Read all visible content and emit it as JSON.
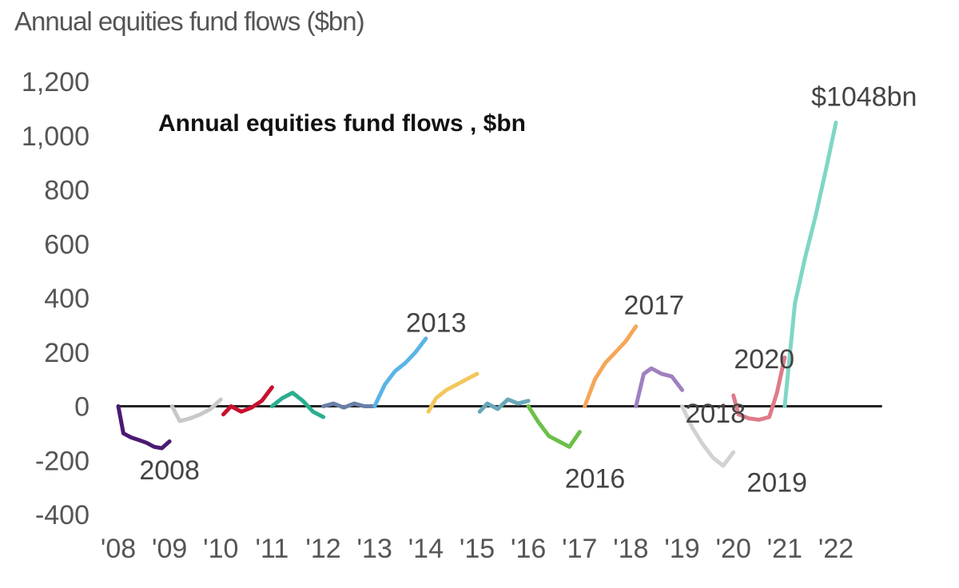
{
  "header": {
    "title": "Annual equities fund flows ($bn)"
  },
  "chart_data": {
    "type": "line",
    "title": "Annual equities fund flows , $bn",
    "ylim": [
      -400,
      1200
    ],
    "yticks": [
      1200,
      1000,
      800,
      600,
      400,
      200,
      0,
      -200,
      -400
    ],
    "ytick_labels": [
      "1,200",
      "1,000",
      "800",
      "600",
      "400",
      "200",
      "0",
      "-200",
      "-400"
    ],
    "xticks": [
      2008,
      2009,
      2010,
      2011,
      2012,
      2013,
      2014,
      2015,
      2016,
      2017,
      2018,
      2019,
      2020,
      2021,
      2022
    ],
    "xtick_labels": [
      "'08",
      "'09",
      "'10",
      "'11",
      "'12",
      "'13",
      "'14",
      "'15",
      "'16",
      "'17",
      "'18",
      "'19",
      "'20",
      "'21",
      "'22"
    ],
    "series": [
      {
        "name": "2008",
        "color": "#4b1a73",
        "x": [
          2008.0,
          2008.1,
          2008.25,
          2008.4,
          2008.55,
          2008.7,
          2008.85,
          2009.0
        ],
        "y": [
          0,
          -100,
          -115,
          -125,
          -135,
          -150,
          -155,
          -130
        ]
      },
      {
        "name": "",
        "color": "#c8c8c8",
        "x": [
          2009.05,
          2009.2,
          2009.4,
          2009.6,
          2009.8,
          2010.0
        ],
        "y": [
          0,
          -55,
          -45,
          -30,
          -10,
          25
        ]
      },
      {
        "name": "",
        "color": "#c8102e",
        "x": [
          2010.05,
          2010.2,
          2010.4,
          2010.6,
          2010.8,
          2011.0
        ],
        "y": [
          -30,
          0,
          -20,
          -5,
          20,
          70
        ]
      },
      {
        "name": "",
        "color": "#2aae8f",
        "x": [
          2011.0,
          2011.2,
          2011.4,
          2011.6,
          2011.8,
          2012.0
        ],
        "y": [
          0,
          30,
          50,
          20,
          -20,
          -40
        ]
      },
      {
        "name": "",
        "color": "#6b7fa8",
        "x": [
          2012.0,
          2012.2,
          2012.4,
          2012.6,
          2012.8,
          2013.0
        ],
        "y": [
          0,
          10,
          -5,
          10,
          0,
          0
        ]
      },
      {
        "name": "2013",
        "color": "#5ab4e6",
        "x": [
          2013.0,
          2013.2,
          2013.4,
          2013.6,
          2013.8,
          2014.0
        ],
        "y": [
          0,
          80,
          130,
          160,
          200,
          250
        ]
      },
      {
        "name": "",
        "color": "#f2c75c",
        "x": [
          2014.05,
          2014.2,
          2014.4,
          2014.6,
          2014.8,
          2015.0
        ],
        "y": [
          -20,
          30,
          60,
          80,
          100,
          120
        ]
      },
      {
        "name": "",
        "color": "#6aa8b8",
        "x": [
          2015.05,
          2015.2,
          2015.4,
          2015.6,
          2015.8,
          2016.0
        ],
        "y": [
          -20,
          10,
          -10,
          25,
          10,
          20
        ]
      },
      {
        "name": "2016",
        "color": "#6cc04a",
        "x": [
          2016.0,
          2016.2,
          2016.4,
          2016.6,
          2016.8,
          2017.0
        ],
        "y": [
          0,
          -60,
          -110,
          -130,
          -150,
          -95
        ]
      },
      {
        "name": "2017",
        "color": "#f5a65b",
        "x": [
          2017.1,
          2017.3,
          2017.5,
          2017.7,
          2017.9,
          2018.1
        ],
        "y": [
          0,
          100,
          160,
          200,
          240,
          295
        ]
      },
      {
        "name": "",
        "color": "#a080c0",
        "x": [
          2018.1,
          2018.25,
          2018.4,
          2018.6,
          2018.8,
          2019.0
        ],
        "y": [
          0,
          120,
          140,
          120,
          110,
          60
        ]
      },
      {
        "name": "2019",
        "color": "#d2d2d2",
        "x": [
          2019.0,
          2019.2,
          2019.4,
          2019.6,
          2019.8,
          2020.0
        ],
        "y": [
          0,
          -80,
          -140,
          -190,
          -220,
          -170
        ]
      },
      {
        "name": "2020",
        "color": "#e07a8a",
        "x": [
          2020.0,
          2020.1,
          2020.3,
          2020.5,
          2020.7,
          2020.85,
          2021.0
        ],
        "y": [
          40,
          -30,
          -45,
          -50,
          -40,
          50,
          180
        ]
      },
      {
        "name": "",
        "color": "#7fd6c6",
        "x": [
          2021.0,
          2021.2,
          2021.4,
          2021.6,
          2021.8,
          2022.0
        ],
        "y": [
          0,
          380,
          550,
          700,
          870,
          1048
        ]
      }
    ],
    "annotations": [
      {
        "text": "2008",
        "x": 2009.0,
        "y": -235
      },
      {
        "text": "2013",
        "x": 2014.2,
        "y": 310
      },
      {
        "text": "2016",
        "x": 2017.3,
        "y": -265
      },
      {
        "text": "2017",
        "x": 2018.45,
        "y": 375
      },
      {
        "text": "2018",
        "x": 2019.65,
        "y": -25
      },
      {
        "text": "2019",
        "x": 2020.85,
        "y": -280
      },
      {
        "text": "2020",
        "x": 2020.6,
        "y": 175
      },
      {
        "text": "$1048bn",
        "x": 2022.55,
        "y": 1145
      }
    ]
  }
}
